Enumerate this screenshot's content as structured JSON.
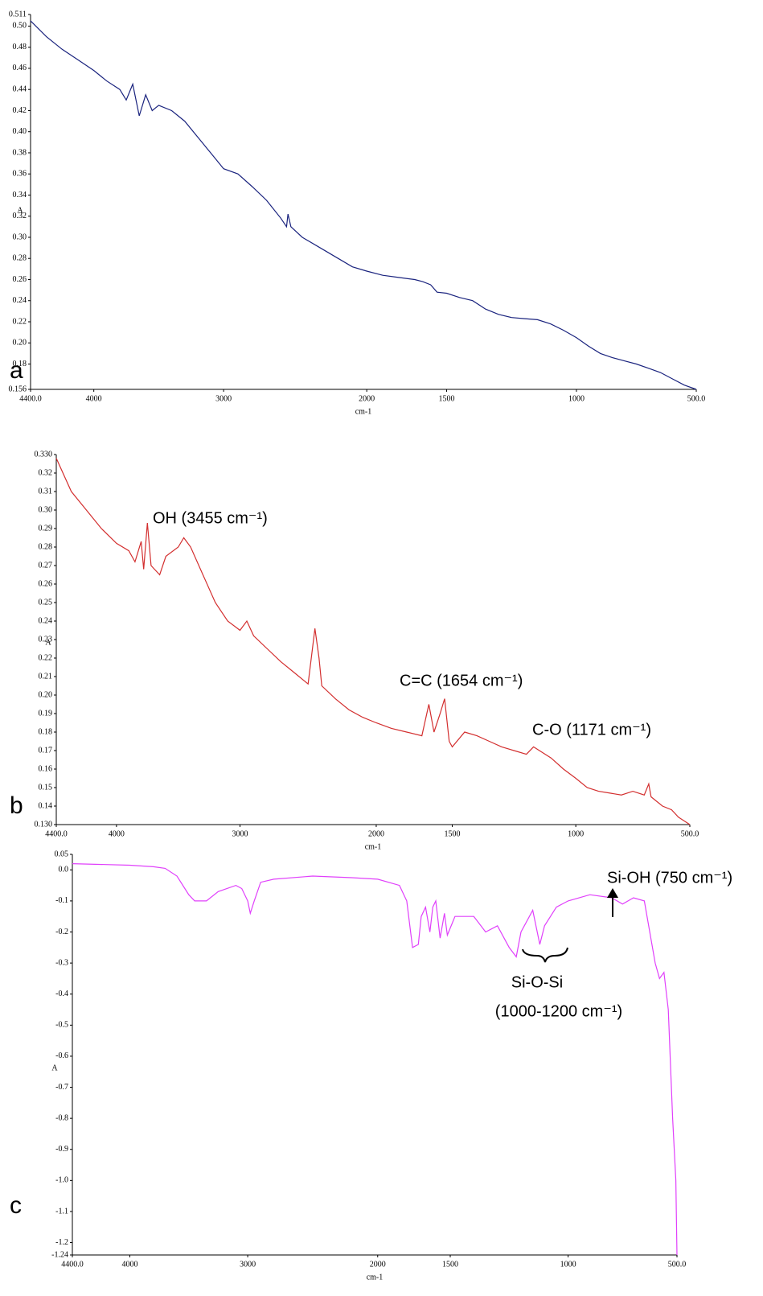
{
  "chart_data": [
    {
      "type": "line",
      "panel_label": "a",
      "y_label": "A",
      "x_label": "cm-1",
      "color": "#1a237e",
      "xlim": [
        4400,
        500
      ],
      "ylim": [
        0.156,
        0.511
      ],
      "xticks": [
        {
          "value": 4400,
          "label": "4400.0"
        },
        4000,
        3000,
        2000,
        1500,
        1000,
        {
          "value": 500,
          "label": "500.0"
        }
      ],
      "yticks": [
        0.156,
        0.18,
        {
          "value": 0.2,
          "label": "0.20"
        },
        0.22,
        0.24,
        0.26,
        0.28,
        {
          "value": 0.3,
          "label": "0.30"
        },
        0.32,
        0.34,
        0.36,
        0.38,
        {
          "value": 0.4,
          "label": "0.40"
        },
        0.42,
        0.44,
        0.46,
        0.48,
        {
          "value": 0.5,
          "label": "0.50"
        },
        0.511
      ],
      "x": [
        4400,
        4300,
        4200,
        4100,
        4000,
        3900,
        3800,
        3750,
        3700,
        3650,
        3600,
        3550,
        3500,
        3400,
        3300,
        3200,
        3100,
        3000,
        2900,
        2800,
        2700,
        2600,
        2560,
        2550,
        2530,
        2450,
        2300,
        2200,
        2100,
        2000,
        1900,
        1800,
        1700,
        1650,
        1600,
        1560,
        1500,
        1450,
        1400,
        1350,
        1300,
        1250,
        1200,
        1150,
        1100,
        1050,
        1000,
        950,
        900,
        850,
        800,
        750,
        700,
        650,
        600,
        550,
        500
      ],
      "values": [
        0.505,
        0.49,
        0.478,
        0.468,
        0.458,
        0.448,
        0.44,
        0.43,
        0.445,
        0.415,
        0.435,
        0.42,
        0.425,
        0.42,
        0.41,
        0.395,
        0.38,
        0.365,
        0.36,
        0.348,
        0.335,
        0.318,
        0.31,
        0.322,
        0.31,
        0.3,
        0.288,
        0.28,
        0.272,
        0.268,
        0.264,
        0.262,
        0.26,
        0.258,
        0.255,
        0.248,
        0.247,
        0.243,
        0.24,
        0.232,
        0.227,
        0.224,
        0.223,
        0.222,
        0.218,
        0.212,
        0.205,
        0.197,
        0.19,
        0.186,
        0.183,
        0.18,
        0.176,
        0.172,
        0.166,
        0.16,
        0.156
      ]
    },
    {
      "type": "line",
      "panel_label": "b",
      "y_label": "A",
      "x_label": "cm-1",
      "color": "#d32f2f",
      "xlim": [
        4400,
        500
      ],
      "ylim": [
        0.13,
        0.33
      ],
      "xticks": [
        {
          "value": 4400,
          "label": "4400.0"
        },
        4000,
        3000,
        2000,
        1500,
        1000,
        {
          "value": 500,
          "label": "500.0"
        }
      ],
      "yticks": [
        {
          "value": 0.13,
          "label": "0.130"
        },
        0.14,
        0.15,
        0.16,
        0.17,
        0.18,
        0.19,
        {
          "value": 0.2,
          "label": "0.20"
        },
        0.21,
        0.22,
        0.23,
        0.24,
        0.25,
        0.26,
        0.27,
        0.28,
        0.29,
        {
          "value": 0.3,
          "label": "0.30"
        },
        0.31,
        0.32,
        {
          "value": 0.33,
          "label": "0.330"
        }
      ],
      "annotations": [
        "OH (3455 cm⁻¹)",
        "C=C (1654 cm⁻¹)",
        "C-O (1171 cm⁻¹)"
      ],
      "x": [
        4400,
        4300,
        4200,
        4100,
        4000,
        3900,
        3850,
        3800,
        3780,
        3750,
        3720,
        3650,
        3600,
        3500,
        3455,
        3400,
        3300,
        3200,
        3100,
        3000,
        2950,
        2900,
        2800,
        2700,
        2600,
        2500,
        2450,
        2420,
        2400,
        2300,
        2200,
        2100,
        2000,
        1900,
        1800,
        1700,
        1654,
        1620,
        1580,
        1550,
        1520,
        1500,
        1450,
        1400,
        1350,
        1300,
        1250,
        1200,
        1171,
        1100,
        1050,
        1000,
        950,
        900,
        850,
        800,
        750,
        700,
        680,
        670,
        620,
        580,
        550,
        500
      ],
      "values": [
        0.328,
        0.31,
        0.3,
        0.29,
        0.282,
        0.278,
        0.272,
        0.283,
        0.268,
        0.293,
        0.27,
        0.265,
        0.275,
        0.28,
        0.285,
        0.28,
        0.265,
        0.25,
        0.24,
        0.235,
        0.24,
        0.232,
        0.225,
        0.218,
        0.212,
        0.206,
        0.236,
        0.22,
        0.205,
        0.198,
        0.192,
        0.188,
        0.185,
        0.182,
        0.18,
        0.178,
        0.195,
        0.18,
        0.19,
        0.198,
        0.175,
        0.172,
        0.18,
        0.178,
        0.175,
        0.172,
        0.17,
        0.168,
        0.172,
        0.166,
        0.16,
        0.155,
        0.15,
        0.148,
        0.147,
        0.146,
        0.148,
        0.146,
        0.152,
        0.145,
        0.14,
        0.138,
        0.134,
        0.13
      ]
    },
    {
      "type": "line",
      "panel_label": "c",
      "y_label": "A",
      "x_label": "cm-1",
      "color": "#e040fb",
      "xlim": [
        4400,
        500
      ],
      "ylim": [
        -1.24,
        0.05
      ],
      "xticks": [
        {
          "value": 4400,
          "label": "4400.0"
        },
        4000,
        3000,
        2000,
        1500,
        1000,
        {
          "value": 500,
          "label": "500.0"
        }
      ],
      "yticks": [
        -1.24,
        -1.2,
        -1.1,
        {
          "value": -1,
          "label": "-1.0"
        },
        -0.9,
        -0.8,
        -0.7,
        -0.6,
        -0.5,
        -0.4,
        -0.3,
        -0.2,
        -0.1,
        {
          "value": 0,
          "label": "0.0"
        },
        0.05
      ],
      "annotations": [
        "Si-OH (750 cm⁻¹)",
        "Si-O-Si",
        "(1000-1200 cm⁻¹)"
      ],
      "x": [
        4400,
        4000,
        3800,
        3700,
        3600,
        3500,
        3450,
        3350,
        3250,
        3100,
        3050,
        3000,
        2980,
        2950,
        2900,
        2800,
        2500,
        2200,
        2000,
        1850,
        1800,
        1760,
        1720,
        1700,
        1670,
        1640,
        1620,
        1600,
        1570,
        1540,
        1520,
        1480,
        1400,
        1350,
        1300,
        1250,
        1220,
        1200,
        1150,
        1120,
        1100,
        1050,
        1000,
        900,
        800,
        750,
        700,
        650,
        620,
        600,
        580,
        560,
        540,
        520,
        505,
        500
      ],
      "values": [
        0.02,
        0.015,
        0.01,
        0.005,
        -0.02,
        -0.08,
        -0.1,
        -0.1,
        -0.07,
        -0.05,
        -0.06,
        -0.1,
        -0.14,
        -0.1,
        -0.04,
        -0.03,
        -0.02,
        -0.025,
        -0.03,
        -0.05,
        -0.1,
        -0.25,
        -0.24,
        -0.15,
        -0.12,
        -0.2,
        -0.12,
        -0.1,
        -0.22,
        -0.14,
        -0.21,
        -0.15,
        -0.15,
        -0.2,
        -0.18,
        -0.25,
        -0.28,
        -0.2,
        -0.13,
        -0.24,
        -0.18,
        -0.12,
        -0.1,
        -0.08,
        -0.09,
        -0.11,
        -0.09,
        -0.1,
        -0.22,
        -0.3,
        -0.35,
        -0.33,
        -0.45,
        -0.8,
        -1.0,
        -1.24
      ]
    }
  ]
}
